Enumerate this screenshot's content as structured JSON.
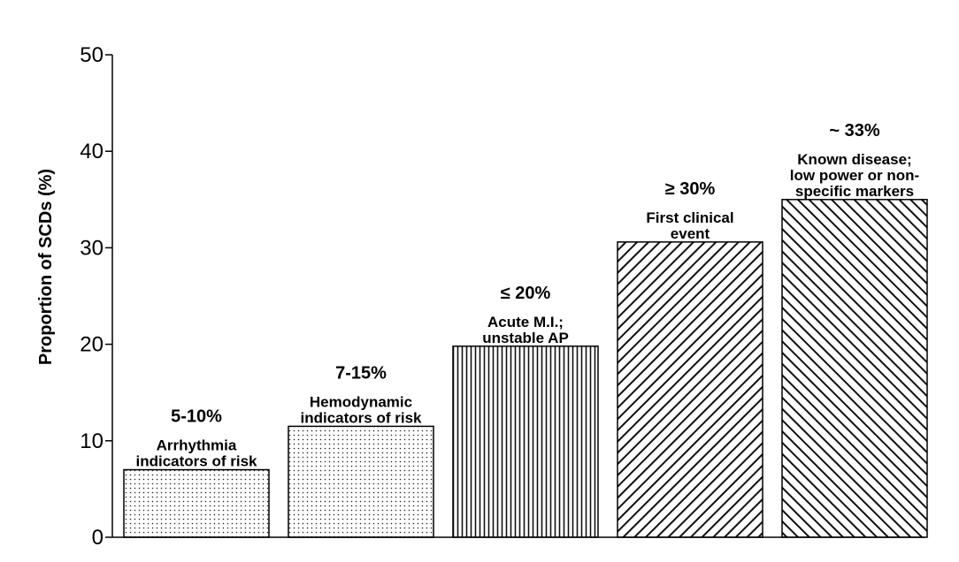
{
  "chart_data": {
    "type": "bar",
    "ylabel": "Proportion of SCDs (%)",
    "ylim": [
      0,
      50
    ],
    "yticks": [
      0,
      10,
      20,
      30,
      40,
      50
    ],
    "grid": false,
    "bars": [
      {
        "value": 7,
        "pct_label": "5-10%",
        "desc": [
          "Arrhythmia",
          "indicators of risk"
        ],
        "pattern": "dots"
      },
      {
        "value": 11.5,
        "pct_label": "7-15%",
        "desc": [
          "Hemodynamic",
          "indicators of risk"
        ],
        "pattern": "dots"
      },
      {
        "value": 19.8,
        "pct_label": "≤ 20%",
        "desc": [
          "Acute M.I.;",
          "unstable AP"
        ],
        "pattern": "vertical-lines"
      },
      {
        "value": 30.6,
        "pct_label": "≥ 30%",
        "desc": [
          "First clinical",
          "event"
        ],
        "pattern": "diagonal-forward"
      },
      {
        "value": 35,
        "pct_label": "~ 33%",
        "desc": [
          "Known disease;",
          "low power or non-",
          "specific markers"
        ],
        "pattern": "diagonal-backward"
      }
    ]
  }
}
